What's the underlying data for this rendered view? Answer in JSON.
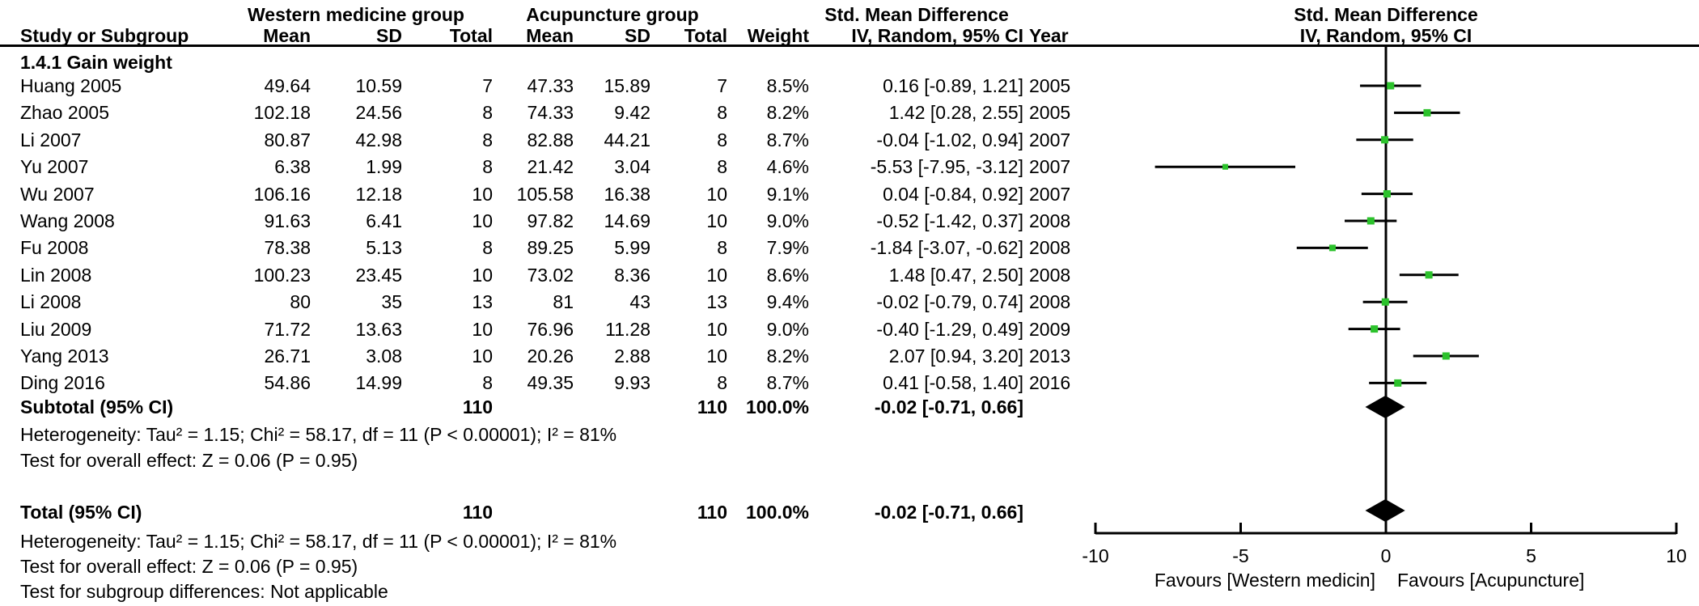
{
  "table": {
    "group_headers": [
      "Western medicine group",
      "Acupuncture group",
      "Std. Mean Difference"
    ],
    "plot_header": [
      "Std. Mean Difference",
      "IV, Random, 95% CI"
    ],
    "columns": [
      "Study or Subgroup",
      "Mean",
      "SD",
      "Total",
      "Mean",
      "SD",
      "Total",
      "Weight",
      "IV, Random, 95% CI",
      "Year"
    ],
    "subgroup_label": "1.4.1 Gain weight",
    "rows": [
      {
        "study": "Huang 2005",
        "mean1": "49.64",
        "sd1": "10.59",
        "total1": "7",
        "mean2": "47.33",
        "sd2": "15.89",
        "total2": "7",
        "weight": "8.5%",
        "ci": "0.16 [-0.89, 1.21]",
        "year": "2005"
      },
      {
        "study": "Zhao 2005",
        "mean1": "102.18",
        "sd1": "24.56",
        "total1": "8",
        "mean2": "74.33",
        "sd2": "9.42",
        "total2": "8",
        "weight": "8.2%",
        "ci": "1.42 [0.28, 2.55]",
        "year": "2005"
      },
      {
        "study": "Li 2007",
        "mean1": "80.87",
        "sd1": "42.98",
        "total1": "8",
        "mean2": "82.88",
        "sd2": "44.21",
        "total2": "8",
        "weight": "8.7%",
        "ci": "-0.04 [-1.02, 0.94]",
        "year": "2007"
      },
      {
        "study": "Yu 2007",
        "mean1": "6.38",
        "sd1": "1.99",
        "total1": "8",
        "mean2": "21.42",
        "sd2": "3.04",
        "total2": "8",
        "weight": "4.6%",
        "ci": "-5.53 [-7.95, -3.12]",
        "year": "2007"
      },
      {
        "study": "Wu 2007",
        "mean1": "106.16",
        "sd1": "12.18",
        "total1": "10",
        "mean2": "105.58",
        "sd2": "16.38",
        "total2": "10",
        "weight": "9.1%",
        "ci": "0.04 [-0.84, 0.92]",
        "year": "2007"
      },
      {
        "study": "Wang 2008",
        "mean1": "91.63",
        "sd1": "6.41",
        "total1": "10",
        "mean2": "97.82",
        "sd2": "14.69",
        "total2": "10",
        "weight": "9.0%",
        "ci": "-0.52 [-1.42, 0.37]",
        "year": "2008"
      },
      {
        "study": "Fu 2008",
        "mean1": "78.38",
        "sd1": "5.13",
        "total1": "8",
        "mean2": "89.25",
        "sd2": "5.99",
        "total2": "8",
        "weight": "7.9%",
        "ci": "-1.84 [-3.07, -0.62]",
        "year": "2008"
      },
      {
        "study": "Lin 2008",
        "mean1": "100.23",
        "sd1": "23.45",
        "total1": "10",
        "mean2": "73.02",
        "sd2": "8.36",
        "total2": "10",
        "weight": "8.6%",
        "ci": "1.48 [0.47, 2.50]",
        "year": "2008"
      },
      {
        "study": "Li 2008",
        "mean1": "80",
        "sd1": "35",
        "total1": "13",
        "mean2": "81",
        "sd2": "43",
        "total2": "13",
        "weight": "9.4%",
        "ci": "-0.02 [-0.79, 0.74]",
        "year": "2008"
      },
      {
        "study": "Liu 2009",
        "mean1": "71.72",
        "sd1": "13.63",
        "total1": "10",
        "mean2": "76.96",
        "sd2": "11.28",
        "total2": "10",
        "weight": "9.0%",
        "ci": "-0.40 [-1.29, 0.49]",
        "year": "2009"
      },
      {
        "study": "Yang 2013",
        "mean1": "26.71",
        "sd1": "3.08",
        "total1": "10",
        "mean2": "20.26",
        "sd2": "2.88",
        "total2": "10",
        "weight": "8.2%",
        "ci": "2.07 [0.94, 3.20]",
        "year": "2013"
      },
      {
        "study": "Ding 2016",
        "mean1": "54.86",
        "sd1": "14.99",
        "total1": "8",
        "mean2": "49.35",
        "sd2": "9.93",
        "total2": "8",
        "weight": "8.7%",
        "ci": "0.41 [-0.58, 1.40]",
        "year": "2016"
      }
    ],
    "subtotal": {
      "label": "Subtotal (95% CI)",
      "total1": "110",
      "total2": "110",
      "weight": "100.0%",
      "ci": "-0.02 [-0.71, 0.66]"
    },
    "subgroup_stats": [
      "Heterogeneity: Tau² = 1.15; Chi² = 58.17, df = 11 (P < 0.00001); I² = 81%",
      "Test for overall effect: Z = 0.06 (P = 0.95)"
    ],
    "total": {
      "label": "Total (95% CI)",
      "total1": "110",
      "total2": "110",
      "weight": "100.0%",
      "ci": "-0.02 [-0.71, 0.66]"
    },
    "total_stats": [
      "Heterogeneity: Tau² = 1.15; Chi² = 58.17, df = 11 (P < 0.00001); I² = 81%",
      "Test for overall effect: Z = 0.06 (P = 0.95)",
      "Test for subgroup differences: Not applicable"
    ]
  },
  "chart_data": {
    "type": "forest",
    "effect_measure": "Std. Mean Difference (IV, Random, 95% CI)",
    "xlim": [
      -10,
      10
    ],
    "x_ticks": [
      -10,
      -5,
      0,
      5,
      10
    ],
    "favours_left": "Favours [Western medicin]",
    "favours_right": "Favours [Acupuncture]",
    "marker_color": "#2cc22c",
    "line_color": "#000000",
    "studies": [
      {
        "label": "Huang 2005",
        "est": 0.16,
        "lo": -0.89,
        "hi": 1.21,
        "weight_pct": 8.5
      },
      {
        "label": "Zhao 2005",
        "est": 1.42,
        "lo": 0.28,
        "hi": 2.55,
        "weight_pct": 8.2
      },
      {
        "label": "Li 2007",
        "est": -0.04,
        "lo": -1.02,
        "hi": 0.94,
        "weight_pct": 8.7
      },
      {
        "label": "Yu 2007",
        "est": -5.53,
        "lo": -7.95,
        "hi": -3.12,
        "weight_pct": 4.6
      },
      {
        "label": "Wu 2007",
        "est": 0.04,
        "lo": -0.84,
        "hi": 0.92,
        "weight_pct": 9.1
      },
      {
        "label": "Wang 2008",
        "est": -0.52,
        "lo": -1.42,
        "hi": 0.37,
        "weight_pct": 9.0
      },
      {
        "label": "Fu 2008",
        "est": -1.84,
        "lo": -3.07,
        "hi": -0.62,
        "weight_pct": 7.9
      },
      {
        "label": "Lin 2008",
        "est": 1.48,
        "lo": 0.47,
        "hi": 2.5,
        "weight_pct": 8.6
      },
      {
        "label": "Li 2008",
        "est": -0.02,
        "lo": -0.79,
        "hi": 0.74,
        "weight_pct": 9.4
      },
      {
        "label": "Liu 2009",
        "est": -0.4,
        "lo": -1.29,
        "hi": 0.49,
        "weight_pct": 9.0
      },
      {
        "label": "Yang 2013",
        "est": 2.07,
        "lo": 0.94,
        "hi": 3.2,
        "weight_pct": 8.2
      },
      {
        "label": "Ding 2016",
        "est": 0.41,
        "lo": -0.58,
        "hi": 1.4,
        "weight_pct": 8.7
      }
    ],
    "subtotal": {
      "est": -0.02,
      "lo": -0.71,
      "hi": 0.66
    },
    "total": {
      "est": -0.02,
      "lo": -0.71,
      "hi": 0.66
    }
  }
}
